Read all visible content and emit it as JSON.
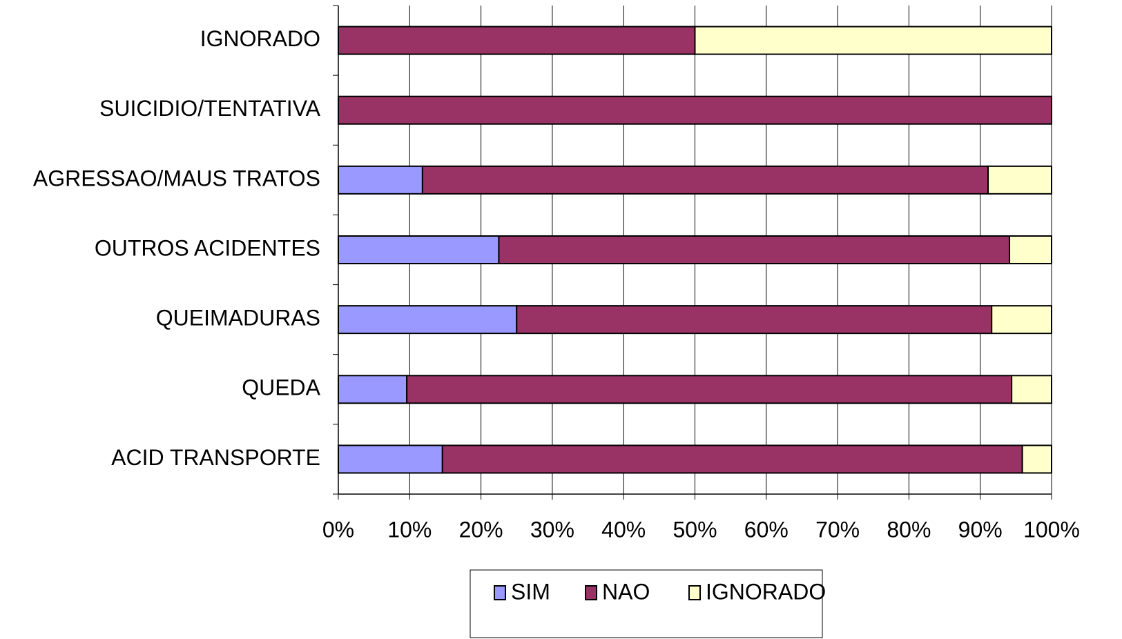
{
  "chart_data": {
    "type": "stacked-bar-horizontal",
    "categories": [
      "IGNORADO",
      "SUICIDIO/TENTATIVA",
      "AGRESSAO/MAUS TRATOS",
      "OUTROS ACIDENTES",
      "QUEIMADURAS",
      "QUEDA",
      "ACID TRANSPORTE"
    ],
    "series": [
      {
        "name": "SIM",
        "color": "#9999ff",
        "values": [
          0,
          0,
          11.8,
          22.5,
          25.0,
          9.6,
          14.6
        ]
      },
      {
        "name": "NAO",
        "color": "#993366",
        "values": [
          50,
          100,
          79.3,
          71.6,
          66.6,
          84.8,
          81.3
        ]
      },
      {
        "name": "IGNORADO",
        "color": "#ffffcc",
        "values": [
          50,
          0,
          8.9,
          5.9,
          8.4,
          5.6,
          4.1
        ]
      }
    ],
    "xlim": [
      0,
      100
    ],
    "xticks": [
      {
        "value": 0,
        "label": "0%"
      },
      {
        "value": 10,
        "label": "10%"
      },
      {
        "value": 20,
        "label": "20%"
      },
      {
        "value": 30,
        "label": "30%"
      },
      {
        "value": 40,
        "label": "40%"
      },
      {
        "value": 50,
        "label": "50%"
      },
      {
        "value": 60,
        "label": "60%"
      },
      {
        "value": 70,
        "label": "70%"
      },
      {
        "value": 80,
        "label": "80%"
      },
      {
        "value": 90,
        "label": "90%"
      },
      {
        "value": 100,
        "label": "100%"
      }
    ],
    "grid": true,
    "legend": "bottom"
  }
}
